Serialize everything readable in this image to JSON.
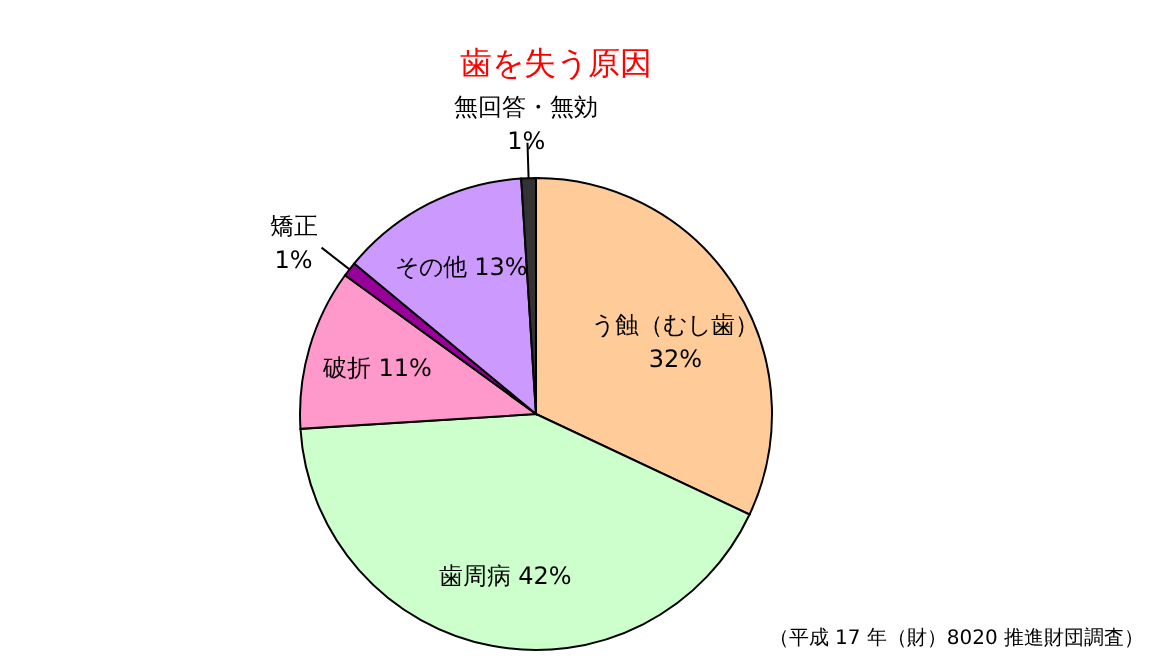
{
  "chart_data": {
    "type": "pie",
    "title": "歯を失う原因",
    "categories": [
      "う蝕（むし歯）",
      "歯周病",
      "破折",
      "矯正",
      "その他",
      "無回答・無効"
    ],
    "values": [
      32,
      42,
      11,
      1,
      13,
      1
    ],
    "value_labels": [
      "32%",
      "42%",
      "11%",
      "1%",
      "13%",
      "1%"
    ],
    "colors": [
      "#ffcc99",
      "#ccffcc",
      "#ff99cc",
      "#990099",
      "#cc99ff",
      "#333333"
    ],
    "annotations": [
      "（平成 17 年（財）8020 推進財団調査）"
    ],
    "legend": false
  }
}
